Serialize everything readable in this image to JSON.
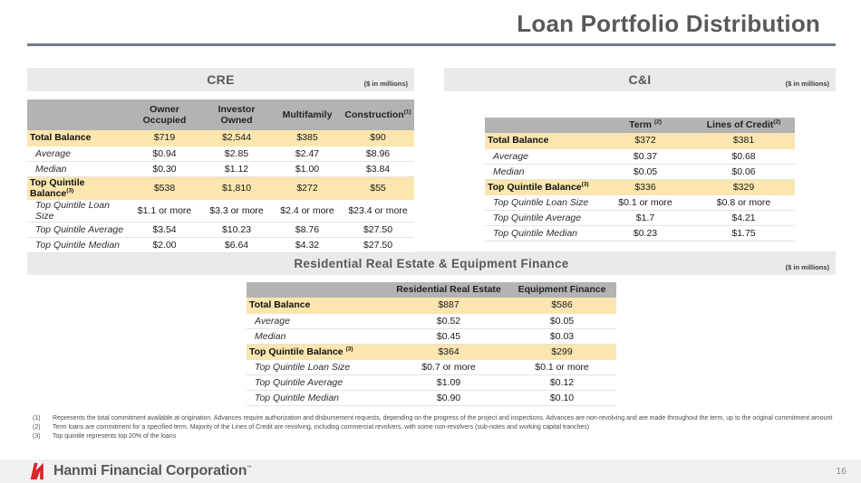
{
  "page": {
    "title": "Loan Portfolio Distribution"
  },
  "colors": {
    "highlight_yellow": "#FAE6AE",
    "table_header_gray": "#B3B3B3",
    "section_band_gray": "#EAEAEA",
    "title_gray": "#58595B",
    "rule_slate": "#6E7B8A",
    "footer_gray": "#F1F1F1",
    "brand_red": "#DB2128"
  },
  "sections": {
    "cre": {
      "title": "CRE",
      "units": "($ in millions)"
    },
    "ci": {
      "title": "C&I",
      "units": "($ in millions)"
    },
    "rre": {
      "title": "Residential Real Estate & Equipment Finance",
      "units": "($ in millions)"
    }
  },
  "tables": {
    "cre": {
      "columns": [
        {
          "label": "",
          "sup": ""
        },
        {
          "label": "Owner Occupied",
          "sup": ""
        },
        {
          "label": "Investor Owned",
          "sup": ""
        },
        {
          "label": "Multifamily",
          "sup": ""
        },
        {
          "label": "Construction",
          "sup": "(1)"
        }
      ],
      "rows": [
        {
          "label": "Total Balance",
          "sup": "",
          "highlight": true,
          "values": [
            "$719",
            "$2,544",
            "$385",
            "$90"
          ]
        },
        {
          "label": "Average",
          "sup": "",
          "highlight": false,
          "values": [
            "$0.94",
            "$2.85",
            "$2.47",
            "$8.96"
          ]
        },
        {
          "label": "Median",
          "sup": "",
          "highlight": false,
          "values": [
            "$0.30",
            "$1.12",
            "$1.00",
            "$3.84"
          ]
        },
        {
          "label": "Top Quintile Balance",
          "sup": "(3)",
          "highlight": true,
          "values": [
            "$538",
            "$1,810",
            "$272",
            "$55"
          ]
        },
        {
          "label": "Top Quintile Loan Size",
          "sup": "",
          "highlight": false,
          "values": [
            "$1.1 or more",
            "$3.3 or more",
            "$2.4 or more",
            "$23.4 or more"
          ]
        },
        {
          "label": "Top Quintile Average",
          "sup": "",
          "highlight": false,
          "values": [
            "$3.54",
            "$10.23",
            "$8.76",
            "$27.50"
          ]
        },
        {
          "label": "Top Quintile Median",
          "sup": "",
          "highlight": false,
          "values": [
            "$2.00",
            "$6.64",
            "$4.32",
            "$27.50"
          ]
        }
      ]
    },
    "ci": {
      "columns": [
        {
          "label": "",
          "sup": ""
        },
        {
          "label": "Term ",
          "sup": "(2)"
        },
        {
          "label": "Lines of Credit",
          "sup": "(2)"
        }
      ],
      "rows": [
        {
          "label": "Total Balance",
          "sup": "",
          "highlight": true,
          "values": [
            "$372",
            "$381"
          ]
        },
        {
          "label": "Average",
          "sup": "",
          "highlight": false,
          "values": [
            "$0.37",
            "$0.68"
          ]
        },
        {
          "label": "Median",
          "sup": "",
          "highlight": false,
          "values": [
            "$0.05",
            "$0.06"
          ]
        },
        {
          "label": "Top Quintile Balance",
          "sup": "(3)",
          "highlight": true,
          "values": [
            "$336",
            "$329"
          ]
        },
        {
          "label": "Top Quintile Loan Size",
          "sup": "",
          "highlight": false,
          "values": [
            "$0.1 or more",
            "$0.8 or more"
          ]
        },
        {
          "label": "Top Quintile Average",
          "sup": "",
          "highlight": false,
          "values": [
            "$1.7",
            "$4.21"
          ]
        },
        {
          "label": "Top Quintile Median",
          "sup": "",
          "highlight": false,
          "values": [
            "$0.23",
            "$1.75"
          ]
        }
      ]
    },
    "rre": {
      "columns": [
        {
          "label": "",
          "sup": ""
        },
        {
          "label": "Residential Real Estate",
          "sup": ""
        },
        {
          "label": "Equipment Finance",
          "sup": ""
        }
      ],
      "rows": [
        {
          "label": "Total Balance",
          "sup": "",
          "highlight": true,
          "values": [
            "$887",
            "$586"
          ]
        },
        {
          "label": "Average",
          "sup": "",
          "highlight": false,
          "values": [
            "$0.52",
            "$0.05"
          ]
        },
        {
          "label": "Median",
          "sup": "",
          "highlight": false,
          "values": [
            "$0.45",
            "$0.03"
          ]
        },
        {
          "label": "Top Quintile Balance ",
          "sup": "(3)",
          "highlight": true,
          "values": [
            "$364",
            "$299"
          ]
        },
        {
          "label": "Top Quintile Loan Size",
          "sup": "",
          "highlight": false,
          "values": [
            "$0.7 or more",
            "$0.1 or more"
          ]
        },
        {
          "label": "Top Quintile Average",
          "sup": "",
          "highlight": false,
          "values": [
            "$1.09",
            "$0.12"
          ]
        },
        {
          "label": "Top Quintile Median",
          "sup": "",
          "highlight": false,
          "values": [
            "$0.90",
            "$0.10"
          ]
        }
      ]
    }
  },
  "footnotes": [
    {
      "num": "(1)",
      "text": "Represents the total commitment available at origination. Advances require authorization and disbursement requests, depending on the progress of the project and inspections. Advances are non-revolving and are made throughout the term, up to the original commitment amount"
    },
    {
      "num": "(2)",
      "text": "Term loans are commitment for a specified term. Majority of the Lines of Credit are revolving, including commercial revolvers, with some non-revolvers (sub-notes and working capital tranches)"
    },
    {
      "num": "(3)",
      "text": "Top quintile represents top 20% of the loans"
    }
  ],
  "footer": {
    "brand": "Hanmi Financial Corporation",
    "trademark": "™",
    "page_number": "16"
  }
}
